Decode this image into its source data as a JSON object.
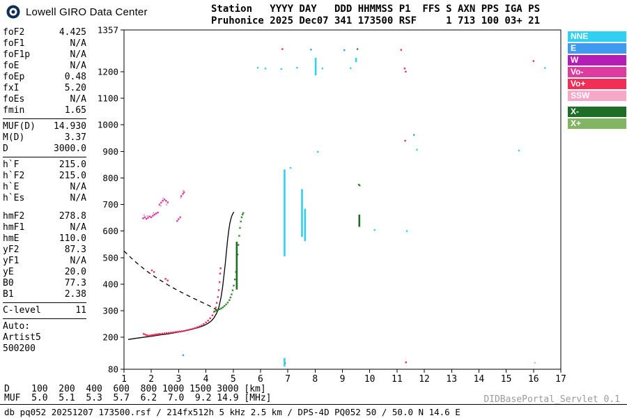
{
  "app": {
    "logo_text": "Lowell GIRO Data Center"
  },
  "header": {
    "line1": "Station   YYYY DAY   DDD HHMMSS P1  FFS S AXN PPS IGA PS",
    "line2": "Pruhonice 2025 Dec07 341 173500 RSF     1 713 100 03+ 21"
  },
  "params": {
    "groups": [
      {
        "divider_after": true,
        "rows": [
          [
            "foF2",
            "4.425"
          ],
          [
            "foF1",
            "N/A"
          ],
          [
            "foF1p",
            "N/A"
          ],
          [
            "foE",
            "N/A"
          ],
          [
            "foEp",
            "0.48"
          ],
          [
            "fxI",
            "5.20"
          ],
          [
            "foEs",
            "N/A"
          ],
          [
            "fmin",
            "1.65"
          ]
        ]
      },
      {
        "divider_after": true,
        "rows": [
          [
            "MUF(D)",
            "14.930"
          ],
          [
            "M(D)",
            "3.37"
          ],
          [
            "D",
            "3000.0"
          ]
        ]
      },
      {
        "divider_after": false,
        "rows": [
          [
            "h`F",
            "215.0"
          ],
          [
            "h`F2",
            "215.0"
          ],
          [
            "h`E",
            "N/A"
          ],
          [
            "h`Es",
            "N/A"
          ]
        ]
      },
      {
        "divider_after": true,
        "rows": [
          [
            "hmF2",
            "278.8"
          ],
          [
            "hmF1",
            "N/A"
          ],
          [
            "hmE",
            "110.0"
          ],
          [
            "yF2",
            "87.3"
          ],
          [
            "yF1",
            "N/A"
          ],
          [
            "yE",
            "20.0"
          ],
          [
            "B0",
            "77.3"
          ],
          [
            "B1",
            "2.38"
          ]
        ]
      },
      {
        "divider_after": true,
        "rows": [
          [
            "C-level",
            "11"
          ]
        ]
      }
    ],
    "auto_lines": [
      "Auto:",
      "Artist5",
      "500200"
    ]
  },
  "legend": {
    "items": [
      {
        "label": "NNE",
        "color": "#2fd0f2",
        "gap_before": false
      },
      {
        "label": "E",
        "color": "#3f9bf0",
        "gap_before": false
      },
      {
        "label": "W",
        "color": "#b41eb4",
        "gap_before": false
      },
      {
        "label": "Vo-",
        "color": "#dc3ca0",
        "gap_before": false
      },
      {
        "label": "Vo+",
        "color": "#f02e56",
        "gap_before": false
      },
      {
        "label": "SSW",
        "color": "#f5a8c8",
        "gap_before": false
      },
      {
        "label": "X-",
        "color": "#1e6e28",
        "gap_before": true
      },
      {
        "label": "X+",
        "color": "#82b464",
        "gap_before": false
      }
    ]
  },
  "footer": {
    "d_row": "D    100  200  400  600  800 1000 1500 3000 [km]",
    "muf_row": "MUF  5.0  5.1  5.3  5.7  6.2  7.0  9.2 14.9 [MHz]",
    "servlet": "DIDBasePortal_Servlet 0.1",
    "status": "db pq052 20251207 173500.rsf / 214fx512h 5 kHz 2.5 km / DPS-4D PQ052 50 / 50.0 N 14.6 E"
  },
  "chart_data": {
    "type": "scatter",
    "title": "",
    "xlabel": "",
    "ylabel": "",
    "xlim": [
      1,
      17
    ],
    "ylim": [
      80,
      1357
    ],
    "xticks": [
      1,
      2,
      3,
      4,
      5,
      6,
      7,
      8,
      9,
      10,
      11,
      12,
      13,
      14,
      15,
      16,
      17
    ],
    "yticks": [
      80,
      200,
      300,
      400,
      500,
      600,
      700,
      800,
      900,
      1000,
      1100,
      1200,
      1357
    ],
    "grid": false,
    "legend_position": "right",
    "series": [
      {
        "name": "profile-trace",
        "type": "line",
        "color": "#000000",
        "points": [
          [
            1.15,
            192
          ],
          [
            1.4,
            196
          ],
          [
            1.7,
            200
          ],
          [
            2.0,
            204
          ],
          [
            2.3,
            209
          ],
          [
            2.6,
            213
          ],
          [
            2.9,
            218
          ],
          [
            3.2,
            224
          ],
          [
            3.5,
            231
          ],
          [
            3.7,
            236
          ],
          [
            3.9,
            243
          ],
          [
            4.05,
            251
          ],
          [
            4.2,
            262
          ],
          [
            4.3,
            274
          ],
          [
            4.4,
            292
          ],
          [
            4.48,
            316
          ],
          [
            4.55,
            348
          ],
          [
            4.61,
            388
          ],
          [
            4.66,
            432
          ],
          [
            4.71,
            478
          ],
          [
            4.75,
            522
          ],
          [
            4.79,
            562
          ],
          [
            4.83,
            598
          ],
          [
            4.88,
            630
          ],
          [
            4.93,
            652
          ],
          [
            4.98,
            665
          ],
          [
            5.03,
            672
          ]
        ]
      },
      {
        "name": "transmission-curve",
        "type": "dashed",
        "color": "#000000",
        "points": [
          [
            1.0,
            525
          ],
          [
            1.25,
            500
          ],
          [
            1.5,
            477
          ],
          [
            1.75,
            456
          ],
          [
            2.0,
            437
          ],
          [
            2.25,
            420
          ],
          [
            2.5,
            404
          ],
          [
            2.75,
            389
          ],
          [
            3.0,
            375
          ],
          [
            3.25,
            362
          ],
          [
            3.5,
            349
          ],
          [
            3.75,
            337
          ],
          [
            4.0,
            325
          ],
          [
            4.2,
            315
          ],
          [
            4.35,
            306
          ],
          [
            4.45,
            300
          ]
        ]
      },
      {
        "name": "o-trace-echoes",
        "type": "scatter",
        "color": "#ee2e5a",
        "points": [
          [
            1.72,
            213
          ],
          [
            1.78,
            210
          ],
          [
            1.84,
            208
          ],
          [
            1.9,
            206
          ],
          [
            1.96,
            207
          ],
          [
            2.02,
            208
          ],
          [
            2.08,
            209
          ],
          [
            2.14,
            210
          ],
          [
            2.2,
            211
          ],
          [
            2.26,
            212
          ],
          [
            2.32,
            213
          ],
          [
            2.4,
            214
          ],
          [
            2.48,
            215
          ],
          [
            2.56,
            216
          ],
          [
            2.64,
            217
          ],
          [
            2.72,
            218
          ],
          [
            2.8,
            219
          ],
          [
            2.88,
            220
          ],
          [
            2.96,
            221
          ],
          [
            3.04,
            222
          ],
          [
            3.12,
            223
          ],
          [
            3.2,
            224
          ],
          [
            3.28,
            226
          ],
          [
            3.36,
            228
          ],
          [
            3.44,
            230
          ],
          [
            3.52,
            232
          ],
          [
            3.6,
            235
          ],
          [
            3.68,
            238
          ],
          [
            3.76,
            241
          ],
          [
            3.84,
            245
          ],
          [
            3.92,
            250
          ],
          [
            4.0,
            256
          ],
          [
            4.08,
            263
          ],
          [
            4.16,
            272
          ],
          [
            4.24,
            283
          ],
          [
            4.3,
            296
          ],
          [
            4.36,
            312
          ],
          [
            4.4,
            330
          ],
          [
            4.44,
            352
          ],
          [
            4.47,
            378
          ],
          [
            4.5,
            408
          ],
          [
            4.52,
            440
          ],
          [
            4.54,
            460
          ]
        ]
      },
      {
        "name": "stray-o-echoes",
        "type": "scatter",
        "color": "#ee2e5a",
        "points": [
          [
            2.02,
            452
          ],
          [
            2.1,
            446
          ],
          [
            2.52,
            420
          ],
          [
            2.6,
            414
          ],
          [
            6.8,
            1285
          ],
          [
            11.15,
            1282
          ],
          [
            11.28,
            1212
          ],
          [
            11.32,
            1200
          ],
          [
            16.0,
            1240
          ],
          [
            11.3,
            940
          ],
          [
            6.9,
            103
          ],
          [
            11.33,
            106
          ]
        ]
      },
      {
        "name": "second-hop-vo-minus",
        "type": "scatter",
        "color": "#dc3ca0",
        "points": [
          [
            1.7,
            648
          ],
          [
            1.76,
            652
          ],
          [
            1.82,
            646
          ],
          [
            1.88,
            650
          ],
          [
            1.94,
            655
          ],
          [
            2.0,
            652
          ],
          [
            2.06,
            658
          ],
          [
            2.12,
            662
          ],
          [
            2.18,
            666
          ],
          [
            2.24,
            670
          ],
          [
            2.3,
            700
          ],
          [
            2.36,
            707
          ],
          [
            2.42,
            714
          ],
          [
            2.48,
            719
          ],
          [
            2.54,
            714
          ],
          [
            2.6,
            708
          ],
          [
            2.95,
            638
          ],
          [
            3.0,
            645
          ],
          [
            3.06,
            652
          ],
          [
            3.1,
            732
          ],
          [
            3.16,
            740
          ],
          [
            3.2,
            746
          ]
        ]
      },
      {
        "name": "second-hop-ssw",
        "type": "scatter",
        "color": "#f5a8c8",
        "points": [
          [
            1.74,
            660
          ],
          [
            1.86,
            657
          ],
          [
            2.08,
            668
          ],
          [
            2.34,
            695
          ],
          [
            2.44,
            723
          ],
          [
            2.56,
            700
          ],
          [
            3.08,
            726
          ],
          [
            3.18,
            752
          ],
          [
            16.05,
            104
          ]
        ]
      },
      {
        "name": "x-trace-echoes",
        "type": "scatter",
        "color": "#2f8c2f",
        "points": [
          [
            4.32,
            298
          ],
          [
            4.38,
            300
          ],
          [
            4.44,
            303
          ],
          [
            4.5,
            306
          ],
          [
            4.56,
            309
          ],
          [
            4.62,
            313
          ],
          [
            4.68,
            318
          ],
          [
            4.74,
            324
          ],
          [
            4.8,
            331
          ],
          [
            4.86,
            340
          ],
          [
            4.9,
            350
          ],
          [
            4.94,
            362
          ],
          [
            4.98,
            377
          ],
          [
            5.02,
            395
          ],
          [
            5.06,
            418
          ],
          [
            5.1,
            446
          ],
          [
            5.13,
            478
          ],
          [
            5.16,
            512
          ],
          [
            5.19,
            548
          ],
          [
            5.22,
            582
          ],
          [
            5.25,
            612
          ],
          [
            5.28,
            636
          ],
          [
            5.31,
            652
          ],
          [
            5.34,
            662
          ],
          [
            5.37,
            668
          ],
          [
            9.6,
            775
          ],
          [
            9.63,
            772
          ],
          [
            9.55,
            1285
          ]
        ]
      },
      {
        "name": "x-trace-strips",
        "type": "vstrip",
        "color": "#1e6e28",
        "segments": [
          [
            5.13,
            380,
            560
          ],
          [
            9.62,
            616,
            662
          ]
        ]
      },
      {
        "name": "rfi-strips-nne",
        "type": "vstrip",
        "color": "#2fd0f2",
        "segments": [
          [
            6.88,
            505,
            832
          ],
          [
            7.52,
            578,
            758
          ],
          [
            7.63,
            562,
            684
          ],
          [
            8.02,
            1186,
            1252
          ],
          [
            6.88,
            90,
            122
          ],
          [
            9.5,
            1236,
            1252
          ]
        ]
      },
      {
        "name": "rfi-dots-nne",
        "type": "scatter",
        "color": "#2fd0f2",
        "points": [
          [
            5.9,
            1215
          ],
          [
            6.18,
            1212
          ],
          [
            6.76,
            1210
          ],
          [
            7.34,
            1215
          ],
          [
            8.27,
            1212
          ],
          [
            9.3,
            1213
          ],
          [
            16.42,
            1214
          ],
          [
            8.1,
            898
          ],
          [
            10.18,
            604
          ],
          [
            11.36,
            600
          ],
          [
            11.73,
            906
          ],
          [
            15.47,
            903
          ],
          [
            7.1,
            838
          ]
        ]
      },
      {
        "name": "e-trace-dots",
        "type": "scatter",
        "color": "#3f9bf0",
        "points": [
          [
            3.17,
            133
          ],
          [
            9.07,
            1281
          ],
          [
            7.85,
            1283
          ],
          [
            11.62,
            962
          ]
        ]
      }
    ]
  }
}
